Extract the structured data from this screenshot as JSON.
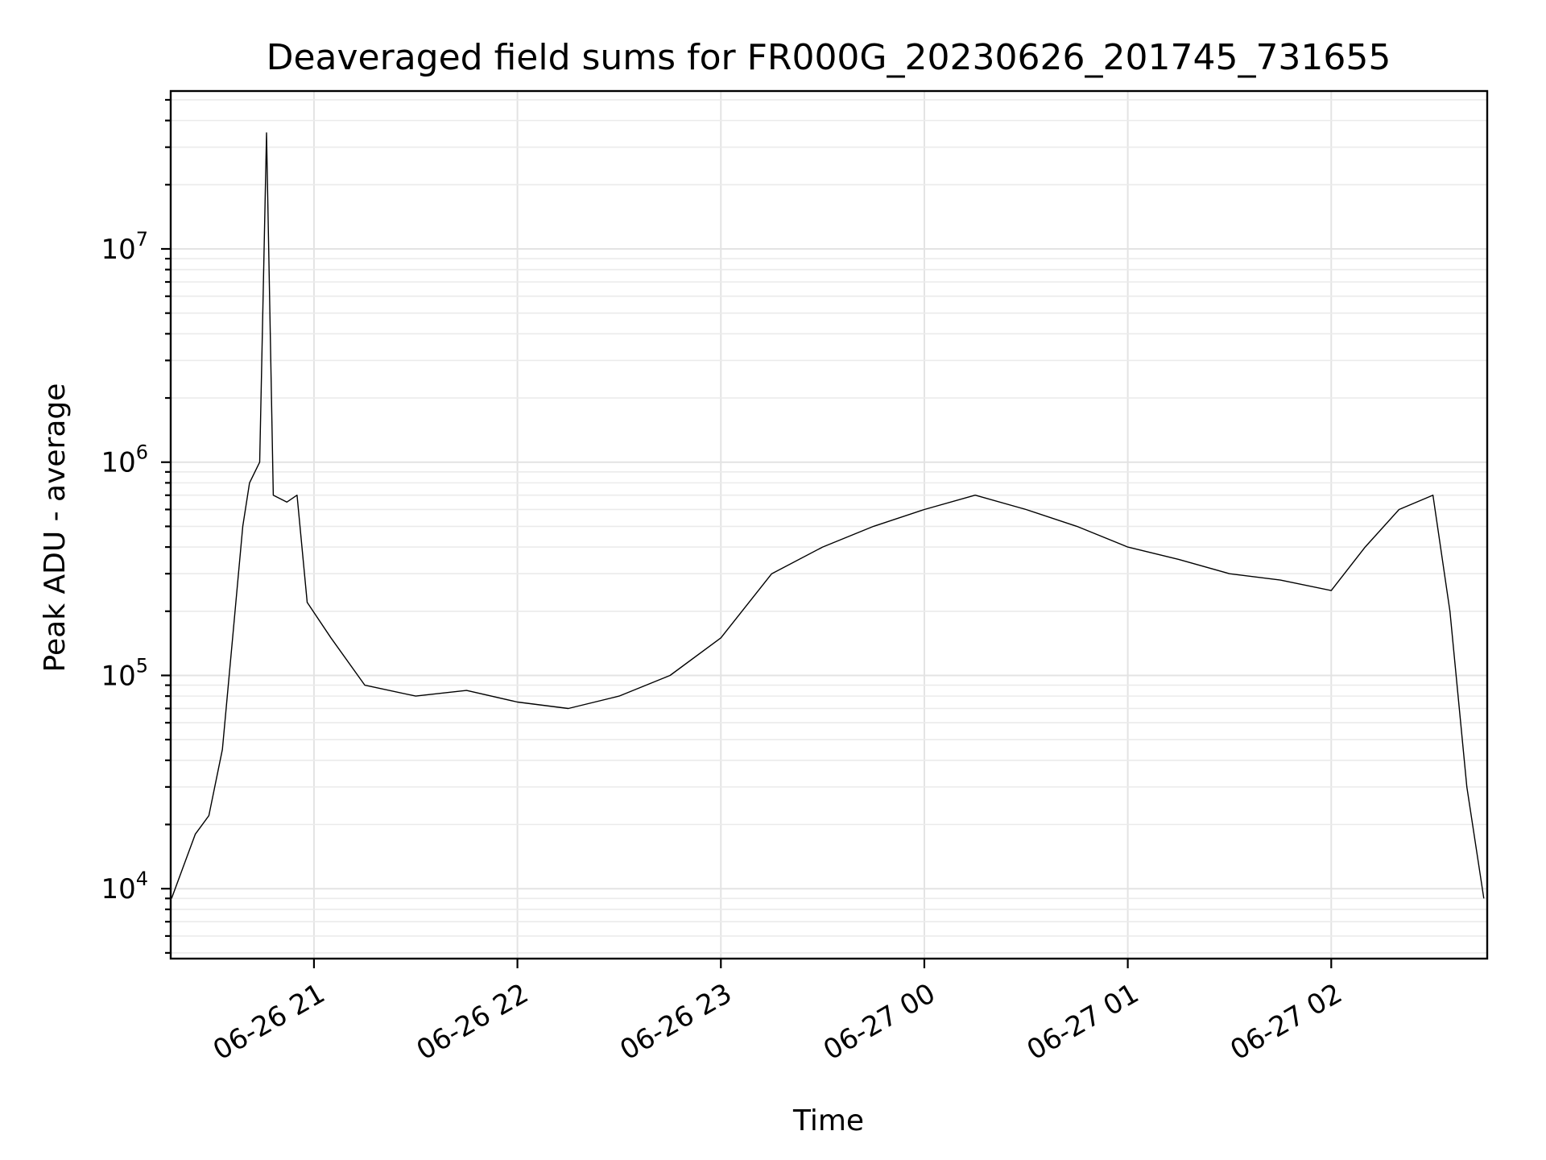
{
  "chart_data": {
    "type": "line",
    "title": "Deaveraged field sums for FR000G_20230626_201745_731655",
    "xlabel": "Time",
    "ylabel": "Peak ADU - average",
    "yscale": "log",
    "ylim": [
      4700,
      55000000
    ],
    "xlim": [
      "2023-06-26 20:17:45",
      "2023-06-27 02:46:00"
    ],
    "grid": "on",
    "legend": "none",
    "line_color": "#000000",
    "x_ticks": [
      {
        "t": "2023-06-26 21:00",
        "label": "06-26 21"
      },
      {
        "t": "2023-06-26 22:00",
        "label": "06-26 22"
      },
      {
        "t": "2023-06-26 23:00",
        "label": "06-26 23"
      },
      {
        "t": "2023-06-27 00:00",
        "label": "06-27 00"
      },
      {
        "t": "2023-06-27 01:00",
        "label": "06-27 01"
      },
      {
        "t": "2023-06-27 02:00",
        "label": "06-27 02"
      }
    ],
    "y_ticks": [
      {
        "v": 10000,
        "base": "10",
        "exp": "4"
      },
      {
        "v": 100000,
        "base": "10",
        "exp": "5"
      },
      {
        "v": 1000000,
        "base": "10",
        "exp": "6"
      },
      {
        "v": 10000000,
        "base": "10",
        "exp": "7"
      }
    ],
    "series": [
      {
        "x": [
          "2023-06-26 20:18",
          "2023-06-26 20:25",
          "2023-06-26 20:29",
          "2023-06-26 20:33",
          "2023-06-26 20:36",
          "2023-06-26 20:39",
          "2023-06-26 20:41",
          "2023-06-26 20:44",
          "2023-06-26 20:46",
          "2023-06-26 20:48",
          "2023-06-26 20:52",
          "2023-06-26 20:55",
          "2023-06-26 20:58",
          "2023-06-26 21:05",
          "2023-06-26 21:15",
          "2023-06-26 21:30",
          "2023-06-26 21:45",
          "2023-06-26 22:00",
          "2023-06-26 22:15",
          "2023-06-26 22:30",
          "2023-06-26 22:45",
          "2023-06-26 23:00",
          "2023-06-26 23:15",
          "2023-06-26 23:30",
          "2023-06-26 23:45",
          "2023-06-27 00:00",
          "2023-06-27 00:15",
          "2023-06-27 00:30",
          "2023-06-27 00:45",
          "2023-06-27 01:00",
          "2023-06-27 01:15",
          "2023-06-27 01:30",
          "2023-06-27 01:45",
          "2023-06-27 02:00",
          "2023-06-27 02:10",
          "2023-06-27 02:20",
          "2023-06-27 02:30",
          "2023-06-27 02:35",
          "2023-06-27 02:40",
          "2023-06-27 02:45"
        ],
        "y": [
          9000,
          18000,
          22000,
          45000,
          150000,
          500000,
          800000,
          1000000,
          35000000,
          700000,
          650000,
          700000,
          220000,
          150000,
          90000,
          80000,
          85000,
          75000,
          70000,
          80000,
          100000,
          150000,
          300000,
          400000,
          500000,
          600000,
          700000,
          600000,
          500000,
          400000,
          350000,
          300000,
          280000,
          250000,
          400000,
          600000,
          700000,
          200000,
          30000,
          9000
        ]
      }
    ]
  }
}
